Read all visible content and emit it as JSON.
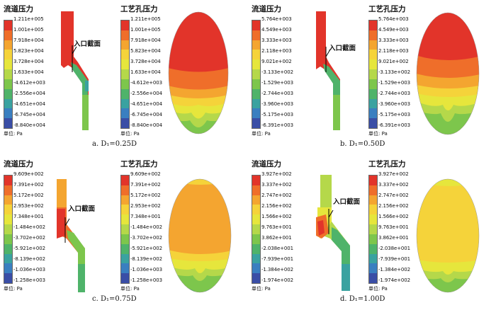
{
  "panels": [
    {
      "left_title": "流道压力",
      "right_title": "工艺孔压力",
      "unit": "单位: Pa",
      "inlet_label": "入口截面",
      "caption": "a. D₁=0.25D",
      "ticks": [
        "1.211e+005",
        "1.001e+005",
        "7.918e+004",
        "5.823e+004",
        "3.728e+004",
        "1.633e+004",
        "-4.612e+003",
        "-2.556e+004",
        "-4.651e+004",
        "-6.745e+004",
        "-8.840e+004"
      ]
    },
    {
      "left_title": "流道压力",
      "right_title": "工艺孔压力",
      "unit": "单位: Pa",
      "inlet_label": "入口截面",
      "caption": "b. D₁=0.50D",
      "ticks": [
        "5.764e+003",
        "4.549e+003",
        "3.333e+003",
        "2.118e+003",
        "9.021e+002",
        "-3.133e+002",
        "-1.529e+003",
        "-2.744e+003",
        "-3.960e+003",
        "-5.175e+003",
        "-6.391e+003"
      ]
    },
    {
      "left_title": "流道压力",
      "right_title": "工艺孔压力",
      "unit": "单位: Pa",
      "inlet_label": "入口截面",
      "caption": "c. D₁=0.75D",
      "ticks": [
        "9.609e+002",
        "7.391e+002",
        "5.172e+002",
        "2.953e+002",
        "7.348e+001",
        "-1.484e+002",
        "-3.702e+002",
        "-5.921e+002",
        "-8.139e+002",
        "-1.036e+003",
        "-1.258e+003"
      ]
    },
    {
      "left_title": "流道压力",
      "right_title": "工艺孔压力",
      "unit": "单位: Pa",
      "inlet_label": "入口截面",
      "caption": "d. D₁=1.00D",
      "ticks": [
        "3.927e+002",
        "3.337e+002",
        "2.747e+002",
        "2.156e+002",
        "1.566e+002",
        "9.763e+001",
        "3.862e+001",
        "-2.038e+001",
        "-7.939e+001",
        "-1.384e+002",
        "-1.974e+002"
      ]
    }
  ],
  "colors": {
    "scale": [
      "#e2342a",
      "#ef6e2a",
      "#f4a530",
      "#f5d33a",
      "#e6e63c",
      "#b5d84a",
      "#7dc64c",
      "#4fb36a",
      "#3aa2a0",
      "#3a7fc0",
      "#3a4ea6"
    ]
  }
}
